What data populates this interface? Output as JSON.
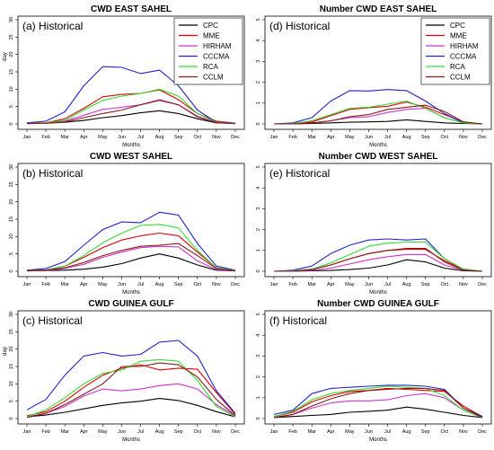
{
  "chart_data": [
    {
      "type": "line",
      "title": "CWD EAST SAHEL",
      "panel_label": "(a) Historical",
      "xlabel": "Months",
      "ylabel": "day",
      "x": [
        "Jan",
        "Feb",
        "Mar",
        "Apr",
        "May",
        "Jun",
        "Jul",
        "Aug",
        "Sep",
        "Oct",
        "Nov",
        "Dec"
      ],
      "ylim": [
        0,
        30
      ],
      "yticks": [
        0,
        5,
        10,
        15,
        20,
        25,
        30
      ],
      "legend": "top-right",
      "series": [
        {
          "name": "CPC",
          "color": "#000000",
          "values": [
            0.1,
            0.2,
            0.5,
            1.0,
            1.8,
            2.4,
            3.2,
            3.8,
            3.0,
            1.5,
            0.3,
            0.1
          ]
        },
        {
          "name": "MME",
          "color": "#dd0000",
          "values": [
            0.2,
            0.3,
            1.5,
            4.5,
            7.8,
            8.5,
            8.8,
            9.8,
            7.0,
            3.0,
            0.8,
            0.2
          ]
        },
        {
          "name": "HIRHAM",
          "color": "#cc33cc",
          "values": [
            0.1,
            0.2,
            0.8,
            2.5,
            4.2,
            4.8,
            5.5,
            7.0,
            5.5,
            2.0,
            0.4,
            0.1
          ]
        },
        {
          "name": "CCCMA",
          "color": "#2222cc",
          "values": [
            0.3,
            0.8,
            3.5,
            11.0,
            16.5,
            16.3,
            14.5,
            15.5,
            11.0,
            4.0,
            0.5,
            0.2
          ]
        },
        {
          "name": "RCA",
          "color": "#33dd33",
          "values": [
            0.1,
            0.3,
            1.0,
            4.0,
            6.8,
            8.0,
            8.8,
            10.0,
            8.0,
            3.0,
            0.5,
            0.1
          ]
        },
        {
          "name": "CCLM",
          "color": "#8b1a1a",
          "values": [
            0.1,
            0.2,
            0.6,
            1.8,
            3.0,
            4.0,
            5.5,
            6.8,
            5.5,
            2.2,
            0.4,
            0.1
          ]
        }
      ]
    },
    {
      "type": "line",
      "title": "Number CWD EAST SAHEL",
      "panel_label": "(d) Historical",
      "xlabel": "Months",
      "ylabel": "",
      "x": [
        "Jan",
        "Feb",
        "Mar",
        "Apr",
        "May",
        "Jun",
        "Jul",
        "Aug",
        "Sep",
        "Oct",
        "Nov",
        "Dec"
      ],
      "ylim": [
        0,
        5
      ],
      "yticks": [
        0,
        1,
        2,
        3,
        4,
        5
      ],
      "legend": "top-right",
      "series": [
        {
          "name": "CPC",
          "color": "#000000",
          "values": [
            0.0,
            0.0,
            0.02,
            0.05,
            0.08,
            0.1,
            0.12,
            0.2,
            0.12,
            0.05,
            0.02,
            0.0
          ]
        },
        {
          "name": "MME",
          "color": "#dd0000",
          "values": [
            0.0,
            0.02,
            0.1,
            0.4,
            0.7,
            0.78,
            0.85,
            1.05,
            0.8,
            0.45,
            0.1,
            0.0
          ]
        },
        {
          "name": "HIRHAM",
          "color": "#cc33cc",
          "values": [
            0.0,
            0.0,
            0.05,
            0.15,
            0.3,
            0.35,
            0.55,
            0.7,
            0.75,
            0.3,
            0.05,
            0.0
          ]
        },
        {
          "name": "CCCMA",
          "color": "#2222cc",
          "values": [
            0.0,
            0.05,
            0.3,
            1.1,
            1.6,
            1.58,
            1.65,
            1.6,
            1.1,
            0.5,
            0.05,
            0.0
          ]
        },
        {
          "name": "RCA",
          "color": "#33dd33",
          "values": [
            0.0,
            0.02,
            0.15,
            0.45,
            0.75,
            0.8,
            0.95,
            1.1,
            0.75,
            0.3,
            0.05,
            0.0
          ]
        },
        {
          "name": "CCLM",
          "color": "#8b1a1a",
          "values": [
            0.0,
            0.0,
            0.05,
            0.15,
            0.35,
            0.45,
            0.7,
            0.8,
            0.9,
            0.6,
            0.1,
            0.0
          ]
        }
      ]
    },
    {
      "type": "line",
      "title": "CWD WEST SAHEL",
      "panel_label": "(b) Historical",
      "xlabel": "Months",
      "ylabel": "",
      "x": [
        "Jan",
        "Feb",
        "Mar",
        "Apr",
        "May",
        "Jun",
        "Jul",
        "Aug",
        "Sep",
        "Oct",
        "Nov",
        "Dec"
      ],
      "ylim": [
        0,
        30
      ],
      "yticks": [
        0,
        5,
        10,
        15,
        20,
        25,
        30
      ],
      "legend": "",
      "series": [
        {
          "name": "CPC",
          "color": "#000000",
          "values": [
            0.1,
            0.2,
            0.3,
            0.6,
            1.2,
            2.2,
            3.8,
            5.0,
            3.8,
            1.8,
            0.3,
            0.1
          ]
        },
        {
          "name": "MME",
          "color": "#dd0000",
          "values": [
            0.2,
            0.4,
            1.5,
            4.0,
            6.8,
            9.0,
            10.2,
            11.0,
            10.2,
            5.5,
            1.0,
            0.2
          ]
        },
        {
          "name": "HIRHAM",
          "color": "#cc33cc",
          "values": [
            0.1,
            0.2,
            0.8,
            2.0,
            4.0,
            5.5,
            6.8,
            7.2,
            7.0,
            3.0,
            0.5,
            0.1
          ]
        },
        {
          "name": "CCCMA",
          "color": "#2222cc",
          "values": [
            0.3,
            0.8,
            2.8,
            7.5,
            12.0,
            14.2,
            14.0,
            17.0,
            16.2,
            8.0,
            1.5,
            0.3
          ]
        },
        {
          "name": "RCA",
          "color": "#33dd33",
          "values": [
            0.1,
            0.4,
            1.5,
            4.5,
            8.2,
            11.0,
            13.2,
            13.5,
            12.5,
            6.0,
            1.0,
            0.2
          ]
        },
        {
          "name": "CCLM",
          "color": "#8b1a1a",
          "values": [
            0.1,
            0.3,
            1.0,
            2.5,
            4.5,
            6.0,
            7.2,
            7.5,
            8.0,
            4.5,
            0.8,
            0.1
          ]
        }
      ]
    },
    {
      "type": "line",
      "title": "Number CWD WEST SAHEL",
      "panel_label": "(e) Historical",
      "xlabel": "Months",
      "ylabel": "",
      "x": [
        "Jan",
        "Feb",
        "Mar",
        "Apr",
        "May",
        "Jun",
        "Jul",
        "Aug",
        "Sep",
        "Oct",
        "Nov",
        "Dec"
      ],
      "ylim": [
        0,
        5
      ],
      "yticks": [
        0,
        1,
        2,
        3,
        4,
        5
      ],
      "legend": "",
      "series": [
        {
          "name": "CPC",
          "color": "#000000",
          "values": [
            0.0,
            0.0,
            0.02,
            0.04,
            0.08,
            0.15,
            0.3,
            0.55,
            0.45,
            0.15,
            0.02,
            0.0
          ]
        },
        {
          "name": "MME",
          "color": "#dd0000",
          "values": [
            0.0,
            0.02,
            0.1,
            0.3,
            0.6,
            0.85,
            1.0,
            1.05,
            1.05,
            0.5,
            0.1,
            0.0
          ]
        },
        {
          "name": "HIRHAM",
          "color": "#cc33cc",
          "values": [
            0.0,
            0.0,
            0.05,
            0.15,
            0.35,
            0.55,
            0.7,
            0.8,
            0.8,
            0.3,
            0.05,
            0.0
          ]
        },
        {
          "name": "CCCMA",
          "color": "#2222cc",
          "values": [
            0.0,
            0.05,
            0.25,
            0.85,
            1.25,
            1.5,
            1.55,
            1.5,
            1.55,
            0.6,
            0.1,
            0.0
          ]
        },
        {
          "name": "RCA",
          "color": "#33dd33",
          "values": [
            0.0,
            0.02,
            0.1,
            0.4,
            0.8,
            1.2,
            1.35,
            1.4,
            1.4,
            0.6,
            0.1,
            0.0
          ]
        },
        {
          "name": "CCLM",
          "color": "#8b1a1a",
          "values": [
            0.0,
            0.0,
            0.08,
            0.3,
            0.6,
            0.85,
            1.0,
            1.1,
            1.1,
            0.45,
            0.05,
            0.0
          ]
        }
      ]
    },
    {
      "type": "line",
      "title": "CWD GUINEA GULF",
      "panel_label": "(c) Historical",
      "xlabel": "Months",
      "ylabel": "day",
      "x": [
        "Jan",
        "Feb",
        "Mar",
        "Apr",
        "May",
        "Jun",
        "Jul",
        "Aug",
        "Sep",
        "Oct",
        "Nov",
        "Dec"
      ],
      "ylim": [
        0,
        30
      ],
      "yticks": [
        0,
        5,
        10,
        15,
        20,
        25,
        30
      ],
      "legend": "",
      "series": [
        {
          "name": "CPC",
          "color": "#000000",
          "values": [
            0.5,
            1.0,
            1.8,
            2.8,
            3.8,
            4.5,
            5.0,
            5.8,
            5.2,
            3.8,
            2.0,
            0.5
          ]
        },
        {
          "name": "MME",
          "color": "#dd0000",
          "values": [
            0.8,
            2.0,
            5.0,
            9.0,
            12.5,
            14.5,
            15.5,
            14.0,
            14.5,
            14.2,
            7.5,
            1.2
          ]
        },
        {
          "name": "HIRHAM",
          "color": "#cc33cc",
          "values": [
            0.5,
            1.5,
            3.5,
            6.5,
            8.5,
            8.0,
            8.5,
            9.5,
            10.0,
            8.5,
            4.0,
            0.8
          ]
        },
        {
          "name": "CCCMA",
          "color": "#2222cc",
          "values": [
            2.5,
            5.5,
            12.5,
            18.0,
            19.0,
            18.0,
            18.5,
            22.0,
            22.5,
            18.0,
            8.0,
            1.5
          ]
        },
        {
          "name": "RCA",
          "color": "#33dd33",
          "values": [
            0.5,
            2.5,
            6.0,
            10.0,
            13.0,
            14.0,
            16.5,
            17.0,
            16.5,
            11.0,
            3.5,
            0.5
          ]
        },
        {
          "name": "CCLM",
          "color": "#8b1a1a",
          "values": [
            0.3,
            1.5,
            4.0,
            7.0,
            10.0,
            15.0,
            15.0,
            16.0,
            15.5,
            12.0,
            5.5,
            0.8
          ]
        }
      ]
    },
    {
      "type": "line",
      "title": "Number CWD GUINEA GULF",
      "panel_label": "(f) Historical",
      "xlabel": "Months",
      "ylabel": "",
      "x": [
        "Jan",
        "Feb",
        "Mar",
        "Apr",
        "May",
        "Jun",
        "Jul",
        "Aug",
        "Sep",
        "Oct",
        "Nov",
        "Dec"
      ],
      "ylim": [
        0,
        5
      ],
      "yticks": [
        0,
        1,
        2,
        3,
        4,
        5
      ],
      "legend": "",
      "series": [
        {
          "name": "CPC",
          "color": "#000000",
          "values": [
            0.05,
            0.1,
            0.15,
            0.2,
            0.3,
            0.35,
            0.4,
            0.55,
            0.45,
            0.3,
            0.15,
            0.05
          ]
        },
        {
          "name": "MME",
          "color": "#dd0000",
          "values": [
            0.1,
            0.3,
            0.8,
            1.1,
            1.3,
            1.35,
            1.45,
            1.4,
            1.35,
            1.3,
            0.6,
            0.1
          ]
        },
        {
          "name": "HIRHAM",
          "color": "#cc33cc",
          "values": [
            0.05,
            0.2,
            0.5,
            0.75,
            0.85,
            0.85,
            0.9,
            1.1,
            1.2,
            1.0,
            0.4,
            0.05
          ]
        },
        {
          "name": "CCCMA",
          "color": "#2222cc",
          "values": [
            0.2,
            0.4,
            1.2,
            1.45,
            1.5,
            1.55,
            1.6,
            1.6,
            1.55,
            1.4,
            0.5,
            0.1
          ]
        },
        {
          "name": "RCA",
          "color": "#33dd33",
          "values": [
            0.1,
            0.35,
            0.9,
            1.2,
            1.35,
            1.45,
            1.55,
            1.5,
            1.45,
            1.1,
            0.4,
            0.05
          ]
        },
        {
          "name": "CCLM",
          "color": "#8b1a1a",
          "values": [
            0.05,
            0.2,
            0.6,
            0.95,
            1.2,
            1.35,
            1.4,
            1.45,
            1.45,
            1.35,
            0.5,
            0.05
          ]
        }
      ]
    }
  ]
}
